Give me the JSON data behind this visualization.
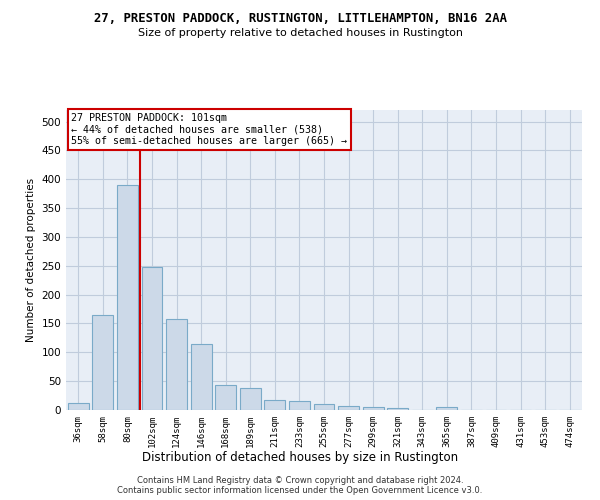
{
  "title1": "27, PRESTON PADDOCK, RUSTINGTON, LITTLEHAMPTON, BN16 2AA",
  "title2": "Size of property relative to detached houses in Rustington",
  "xlabel": "Distribution of detached houses by size in Rustington",
  "ylabel": "Number of detached properties",
  "bar_labels": [
    "36sqm",
    "58sqm",
    "80sqm",
    "102sqm",
    "124sqm",
    "146sqm",
    "168sqm",
    "189sqm",
    "211sqm",
    "233sqm",
    "255sqm",
    "277sqm",
    "299sqm",
    "321sqm",
    "343sqm",
    "365sqm",
    "387sqm",
    "409sqm",
    "431sqm",
    "453sqm",
    "474sqm"
  ],
  "bar_values": [
    13,
    165,
    390,
    248,
    157,
    114,
    43,
    39,
    18,
    15,
    10,
    7,
    5,
    3,
    0,
    5,
    0,
    0,
    0,
    0,
    0
  ],
  "bar_color": "#ccd9e8",
  "bar_edgecolor": "#7aaac8",
  "grid_color": "#c0ccdc",
  "bg_color": "#e8eef6",
  "vline_x": 2.5,
  "vline_color": "#cc0000",
  "annotation_text": "27 PRESTON PADDOCK: 101sqm\n← 44% of detached houses are smaller (538)\n55% of semi-detached houses are larger (665) →",
  "annotation_box_color": "#cc0000",
  "ylim": [
    0,
    520
  ],
  "yticks": [
    0,
    50,
    100,
    150,
    200,
    250,
    300,
    350,
    400,
    450,
    500
  ],
  "footer1": "Contains HM Land Registry data © Crown copyright and database right 2024.",
  "footer2": "Contains public sector information licensed under the Open Government Licence v3.0."
}
